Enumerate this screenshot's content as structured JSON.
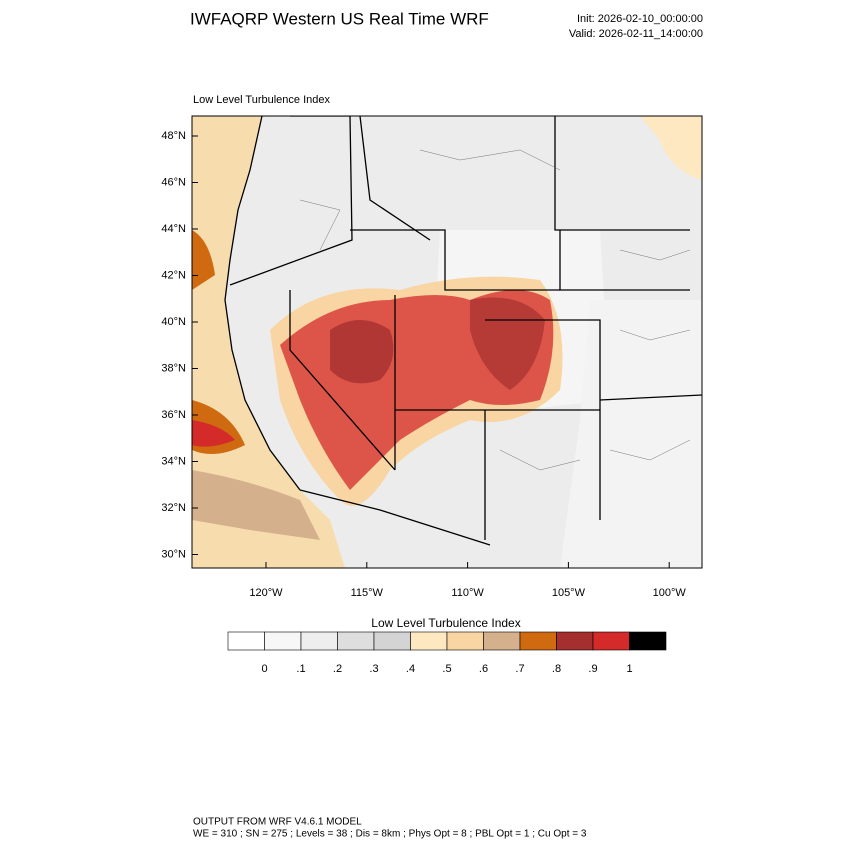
{
  "header": {
    "title": "IWFAQRP Western US Real Time WRF",
    "init": "Init: 2026-02-10_00:00:00",
    "valid": "Valid: 2026-02-11_14:00:00"
  },
  "map": {
    "subtitle": "Low Level Turbulence Index",
    "lat_labels": [
      "48°N",
      "46°N",
      "44°N",
      "42°N",
      "40°N",
      "38°N",
      "36°N",
      "34°N",
      "32°N",
      "30°N"
    ],
    "lon_labels": [
      "120°W",
      "115°W",
      "110°W",
      "105°W",
      "100°W"
    ]
  },
  "colorbar": {
    "title": "Low Level Turbulence Index",
    "colors": [
      "#ffffff",
      "#f7f7f7",
      "#eeeeee",
      "#dedede",
      "#d4d4d4",
      "#fde8c2",
      "#f8d5a3",
      "#d4b18c",
      "#cf6a10",
      "#a52f2f",
      "#d42a2a",
      "#000000"
    ],
    "labels": [
      "0",
      ".1",
      ".2",
      ".3",
      ".4",
      ".5",
      ".6",
      ".7",
      ".8",
      ".9",
      "1"
    ]
  },
  "footer": {
    "line1": "OUTPUT FROM WRF V4.6.1 MODEL",
    "line2": "WE = 310 ; SN = 275 ; Levels = 38 ; Dis = 8km ; Phys Opt = 8 ; PBL Opt = 1 ; Cu Opt = 3"
  }
}
